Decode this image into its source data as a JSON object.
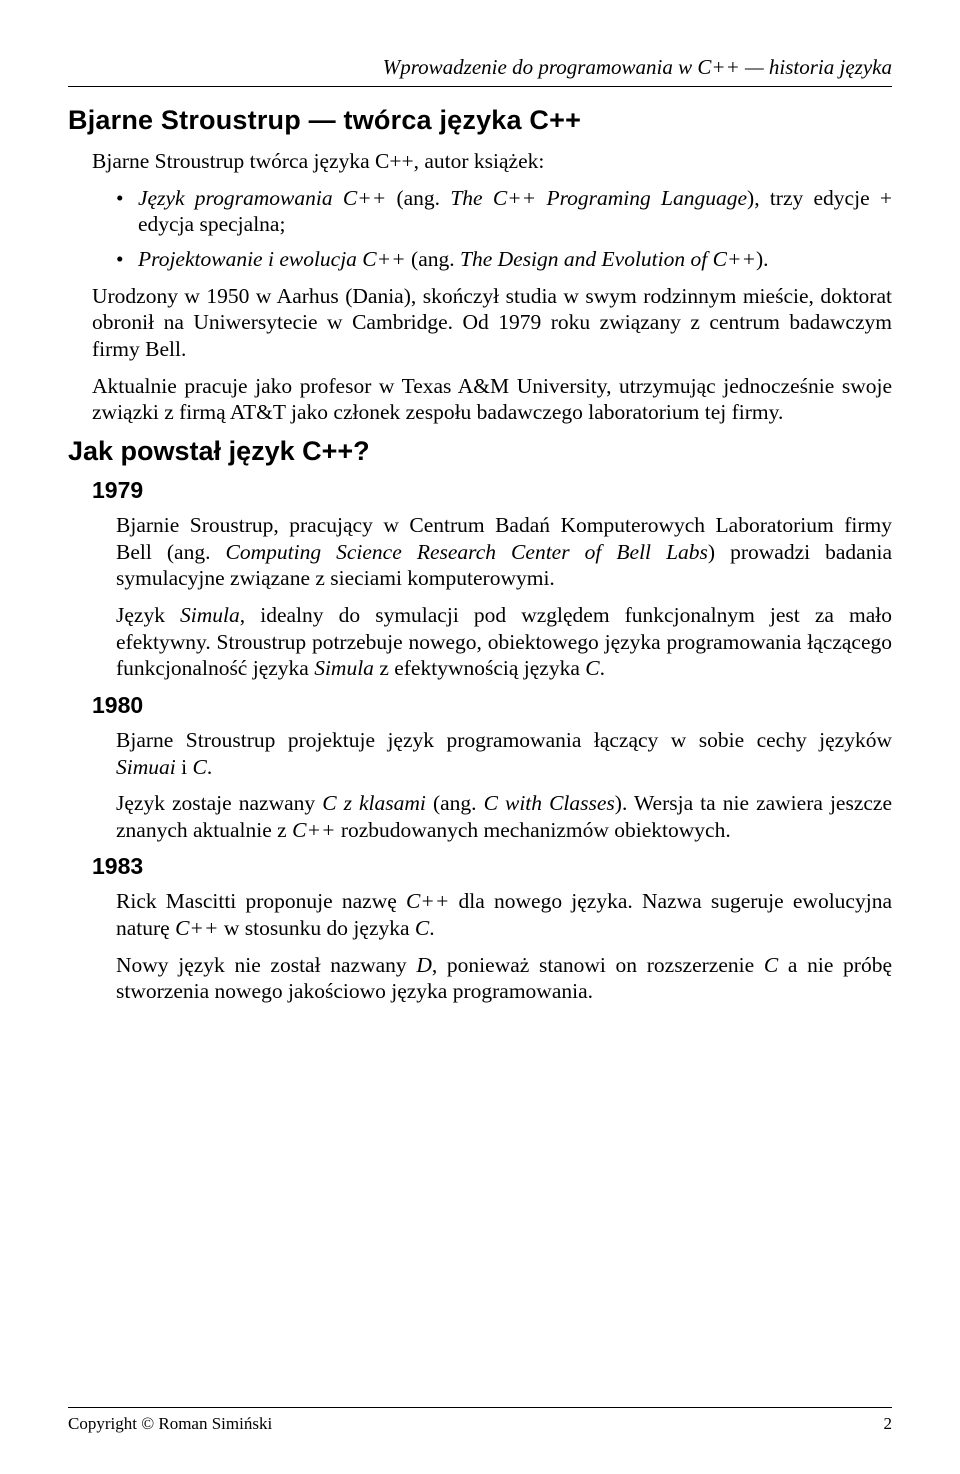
{
  "header": {
    "running_title": "Wprowadzenie do programowania w C++ — historia języka"
  },
  "section1": {
    "title": "Bjarne Stroustrup — twórca języka C++",
    "intro": "Bjarne Stroustrup twórca języka C++, autor książek:",
    "bullets": [
      {
        "italic1": "Język programowania C++",
        "plain1": " (ang. ",
        "italic2": "The C++ Programing Language",
        "plain2": "), trzy edycje + edycja specjalna;"
      },
      {
        "italic1": "Projektowanie i ewolucja C++",
        "plain1": " (ang. ",
        "italic2": "The Design and Evolution of C++",
        "plain2": ")."
      }
    ],
    "para1": "Urodzony w 1950 w Aarhus (Dania), skończył studia w swym rodzinnym mieście, doktorat obronił na Uniwersytecie w Cambridge. Od 1979 roku związany z centrum badawczym firmy Bell.",
    "para2": "Aktualnie pracuje jako profesor w Texas A&M University, utrzymując jednocześnie swoje związki z firmą AT&T jako członek zespołu badawczego laboratorium tej firmy."
  },
  "section2": {
    "title": "Jak powstał język C++?",
    "y1979": {
      "label": "1979",
      "p1a": "Bjarnie Sroustrup, pracujący w Centrum Badań Komputerowych Laboratorium firmy Bell (ang. ",
      "p1b": "Computing Science Research Center of Bell Labs",
      "p1c": ") prowadzi badania symulacyjne związane z sieciami komputerowymi.",
      "p2a": "Język ",
      "p2b": "Simula",
      "p2c": ", idealny do symulacji pod względem funkcjonalnym jest za mało efektywny. Stroustrup potrzebuje nowego, obiektowego języka programowania łączącego funkcjonalność języka ",
      "p2d": "Simula",
      "p2e": " z efektywnością języka ",
      "p2f": "C",
      "p2g": "."
    },
    "y1980": {
      "label": "1980",
      "p1a": "Bjarne Stroustrup projektuje język programowania łączący w sobie cechy języków ",
      "p1b": "Simuai",
      "p1c": " i ",
      "p1d": "C",
      "p1e": ".",
      "p2a": "Język zostaje nazwany ",
      "p2b": "C z klasami",
      "p2c": " (ang. ",
      "p2d": "C with Classes",
      "p2e": "). Wersja ta nie zawiera jeszcze znanych aktualnie z ",
      "p2f": "C++",
      "p2g": " rozbudowanych mechanizmów obiektowych."
    },
    "y1983": {
      "label": "1983",
      "p1a": "Rick Mascitti proponuje nazwę ",
      "p1b": "C++",
      "p1c": " dla nowego języka. Nazwa sugeruje ewolucyjna naturę ",
      "p1d": "C++",
      "p1e": " w stosunku do języka ",
      "p1f": "C",
      "p1g": ".",
      "p2a": "Nowy język nie został nazwany ",
      "p2b": "D",
      "p2c": ", ponieważ stanowi on rozszerzenie ",
      "p2d": "C",
      "p2e": " a nie próbę stworzenia nowego jakościowo języka programowania."
    }
  },
  "footer": {
    "copyright": "Copyright © Roman Simiński",
    "page": "2"
  }
}
